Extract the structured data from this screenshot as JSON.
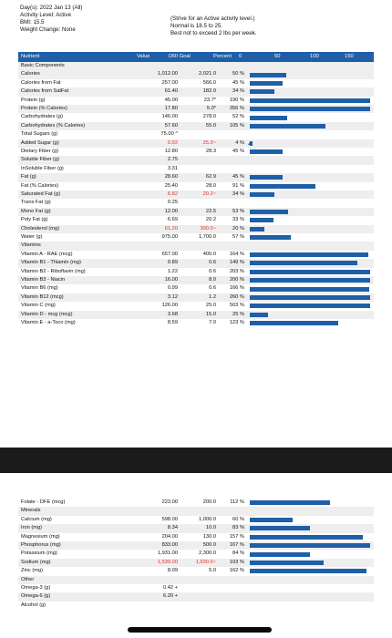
{
  "header": {
    "day": "Day(s): 2022 Jan 13 (All)",
    "activity": "Activity Level: Active",
    "bmi": "BMI: 15.5",
    "weight": "Weight Change: None",
    "note1": "(Strive for an Active activity level.)",
    "note2": "Normal is 18.5 to 25.",
    "note3": "Best not to exceed 2 lbs per week."
  },
  "table_head": {
    "nutrient": "Nutrient",
    "value": "Value",
    "dri": "DRI Goal",
    "percent": "Percent",
    "scale": [
      "0",
      "50",
      "100",
      "150"
    ]
  },
  "rows": [
    {
      "name": "Basic Components",
      "section": true
    },
    {
      "name": "Calories",
      "value": "1,012.00",
      "dri": "2,021.0",
      "pct": "50 %",
      "bar": 50
    },
    {
      "name": "Calories from Fat",
      "value": "257.00",
      "dri": "566.0",
      "pct": "45 %",
      "bar": 45
    },
    {
      "name": "Calories from SatFat",
      "value": "61.40",
      "dri": "182.0",
      "pct": "34 %",
      "bar": 34
    },
    {
      "name": "Protein (g)",
      "value": "45.00",
      "dri": "23.7*",
      "pct": "190 %",
      "bar": 190
    },
    {
      "name": "Protein (% Calories)",
      "value": "17.80",
      "dri": "5.0*",
      "pct": "356 %",
      "bar": 356
    },
    {
      "name": "Carbohydrates (g)",
      "value": "146.00",
      "dri": "278.0",
      "pct": "52 %",
      "bar": 52
    },
    {
      "name": "Carbohydrates (% Calories)",
      "value": "57.60",
      "dri": "55.0",
      "pct": "105 %",
      "bar": 105
    },
    {
      "name": "Total Sugars (g)",
      "value": "75.00 ^"
    },
    {
      "name": "Added Sugar (g)",
      "value": "0.92",
      "dri": "25.3~",
      "pct": "4 %",
      "bar": 4,
      "red": true,
      "marker": true
    },
    {
      "name": "Dietary Fiber (g)",
      "value": "12.80",
      "dri": "28.3",
      "pct": "45 %",
      "bar": 45
    },
    {
      "name": "Soluble Fiber (g)",
      "value": "2.75"
    },
    {
      "name": "InSoluble Fiber (g)",
      "value": "3.31"
    },
    {
      "name": "Fat (g)",
      "value": "28.60",
      "dri": "62.9",
      "pct": "45 %",
      "bar": 45
    },
    {
      "name": "Fat (% Calories)",
      "value": "25.40",
      "dri": "28.0",
      "pct": "91 %",
      "bar": 91
    },
    {
      "name": "Saturated Fat (g)",
      "value": "6.82",
      "dri": "20.2~",
      "pct": "34 %",
      "bar": 34,
      "red": true
    },
    {
      "name": "Trans Fat (g)",
      "value": "0.25"
    },
    {
      "name": "Mono Fat (g)",
      "value": "12.00",
      "dri": "22.5",
      "pct": "53 %",
      "bar": 53
    },
    {
      "name": "Poly Fat (g)",
      "value": "6.69",
      "dri": "20.2",
      "pct": "33 %",
      "bar": 33
    },
    {
      "name": "Cholesterol (mg)",
      "value": "61.20",
      "dri": "300.0~",
      "pct": "20 %",
      "bar": 20,
      "red": true
    },
    {
      "name": "Water (g)",
      "value": "975.00",
      "dri": "1,700.0",
      "pct": "57 %",
      "bar": 57
    },
    {
      "name": "Vitamins",
      "section": true
    },
    {
      "name": "Vitamin A - RAE (mcg)",
      "value": "657.00",
      "dri": "400.0",
      "pct": "164 %",
      "bar": 164
    },
    {
      "name": "Vitamin B1 - Thiamin (mg)",
      "value": "0.89",
      "dri": "0.6",
      "pct": "149 %",
      "bar": 149
    },
    {
      "name": "Vitamin B2 - Riboflavin (mg)",
      "value": "1.22",
      "dri": "0.6",
      "pct": "203 %",
      "bar": 203
    },
    {
      "name": "Vitamin B3 - Niacin",
      "value": "16.00",
      "dri": "8.0",
      "pct": "200 %",
      "bar": 200
    },
    {
      "name": "Vitamin B6 (mg)",
      "value": "0.99",
      "dri": "0.6",
      "pct": "166 %",
      "bar": 166
    },
    {
      "name": "Vitamin B12 (mcg)",
      "value": "3.12",
      "dri": "1.2",
      "pct": "260 %",
      "bar": 260
    },
    {
      "name": "Vitamin C (mg)",
      "value": "126.00",
      "dri": "25.0",
      "pct": "503 %",
      "bar": 503
    },
    {
      "name": "Vitamin D - mcg (mcg)",
      "value": "3.68",
      "dri": "15.0",
      "pct": "25 %",
      "bar": 25
    },
    {
      "name": "Vitamin E - a-Toco (mg)",
      "value": "8.59",
      "dri": "7.0",
      "pct": "123 %",
      "bar": 123
    }
  ],
  "rows2": [
    {
      "name": "Folate - DFE (mcg)",
      "value": "223.00",
      "dri": "200.0",
      "pct": "112 %",
      "bar": 112
    },
    {
      "name": "Minerals",
      "section": true
    },
    {
      "name": "Calcium (mg)",
      "value": "598.00",
      "dri": "1,000.0",
      "pct": "60 %",
      "bar": 60
    },
    {
      "name": "Iron (mg)",
      "value": "8.34",
      "dri": "10.0",
      "pct": "83 %",
      "bar": 83
    },
    {
      "name": "Magnesium (mg)",
      "value": "204.00",
      "dri": "130.0",
      "pct": "157 %",
      "bar": 157
    },
    {
      "name": "Phosphorus (mg)",
      "value": "833.00",
      "dri": "500.0",
      "pct": "167 %",
      "bar": 167
    },
    {
      "name": "Potassium (mg)",
      "value": "1,931.00",
      "dri": "2,300.0",
      "pct": "84 %",
      "bar": 84
    },
    {
      "name": "Sodium (mg)",
      "value": "1,539.00",
      "dri": "1,500.0~",
      "pct": "103 %",
      "bar": 103,
      "red": true
    },
    {
      "name": "Zinc (mg)",
      "value": "8.09",
      "dri": "5.0",
      "pct": "162 %",
      "bar": 162
    },
    {
      "name": "Other",
      "section": true
    },
    {
      "name": "Omega-3 (g)",
      "value": "0.42 +"
    },
    {
      "name": "Omega-6 (g)",
      "value": "6.20 +"
    },
    {
      "name": "Alcohol (g)",
      "value": ""
    }
  ]
}
